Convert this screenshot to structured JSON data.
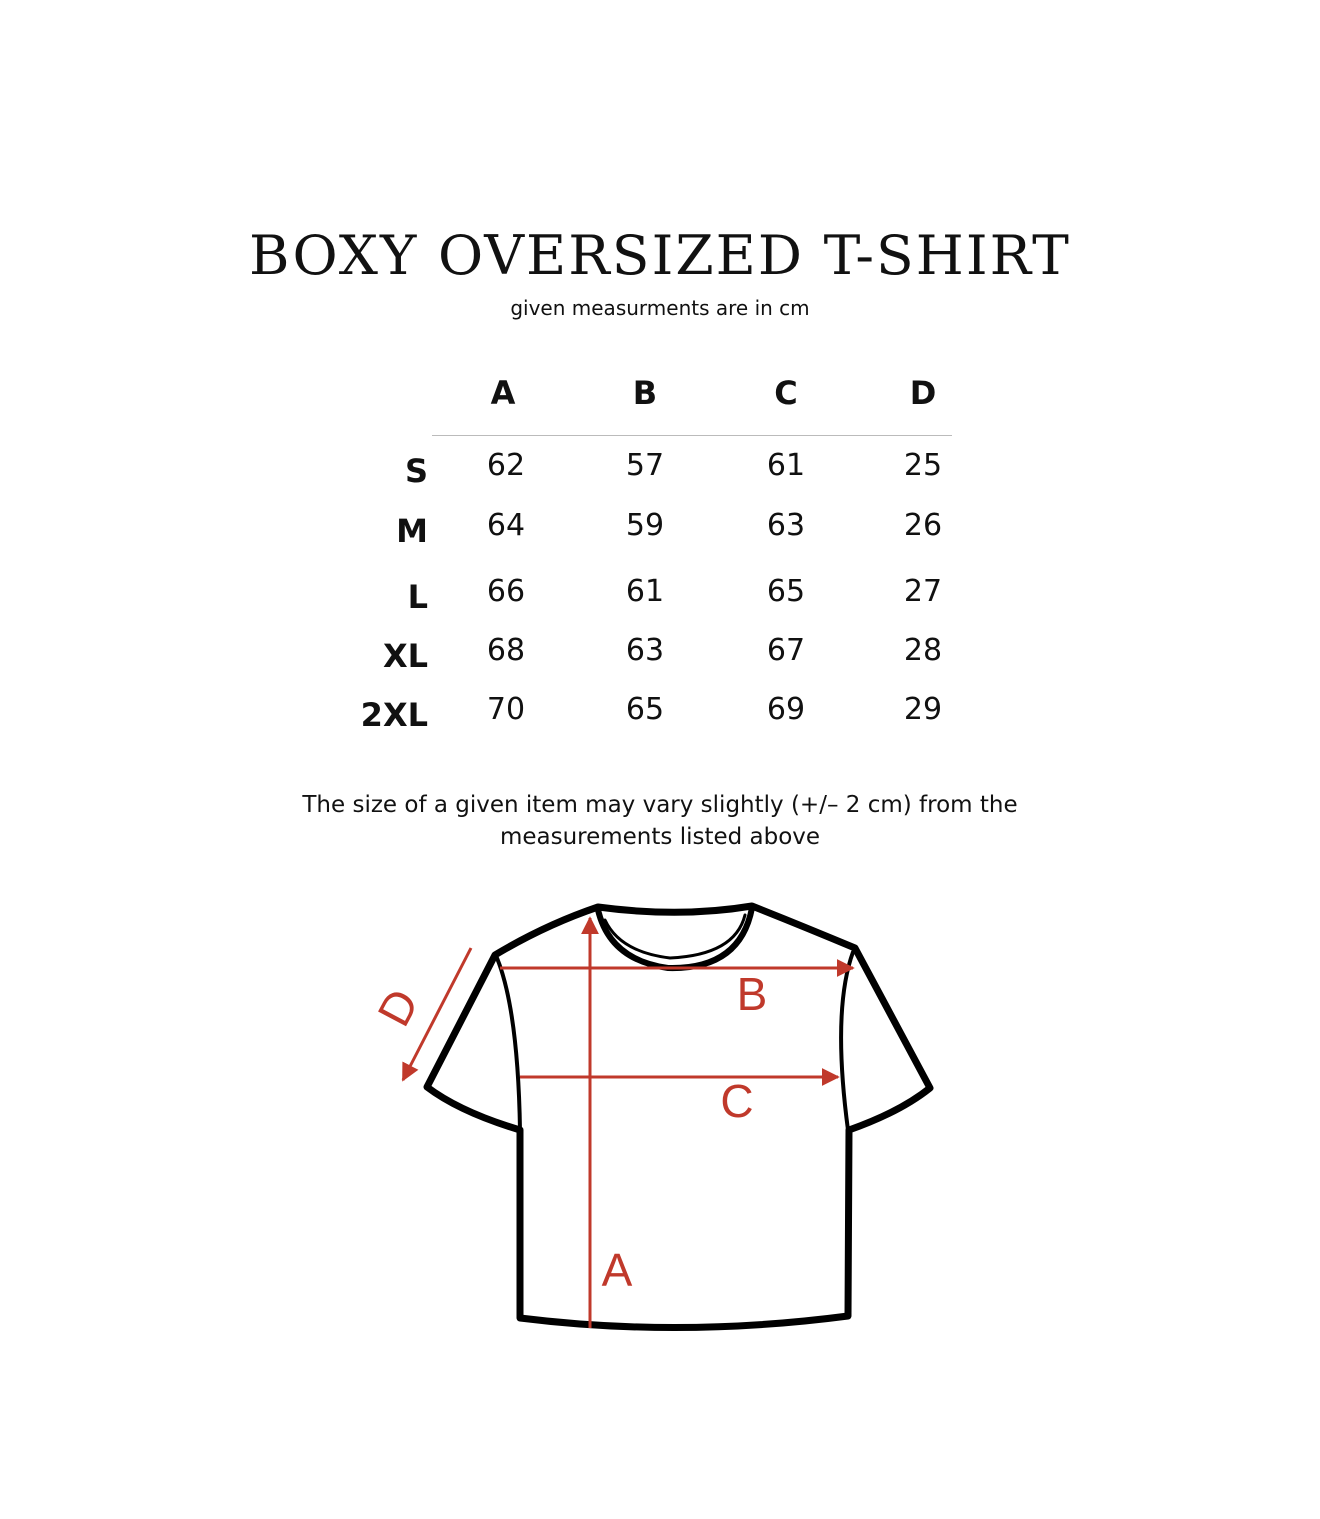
{
  "title": "BOXY OVERSIZED T-SHIRT",
  "subtitle": "given measurments are in cm",
  "table": {
    "columns": [
      "A",
      "B",
      "C",
      "D"
    ],
    "rows": [
      {
        "size": "S",
        "values": [
          "62",
          "57",
          "61",
          "25"
        ]
      },
      {
        "size": "M",
        "values": [
          "64",
          "59",
          "63",
          "26"
        ]
      },
      {
        "size": "L",
        "values": [
          "66",
          "61",
          "65",
          "27"
        ]
      },
      {
        "size": "XL",
        "values": [
          "68",
          "63",
          "67",
          "28"
        ]
      },
      {
        "size": "2XL",
        "values": [
          "70",
          "65",
          "69",
          "29"
        ]
      }
    ]
  },
  "note_line1": "The size of a given item may vary slightly (+/– 2 cm) from the",
  "note_line2": "measurements listed above",
  "diagram": {
    "labels": {
      "a": "A",
      "b": "B",
      "c": "C",
      "d": "D"
    },
    "measure_color": "#c0392b",
    "outline_color": "#000000"
  }
}
